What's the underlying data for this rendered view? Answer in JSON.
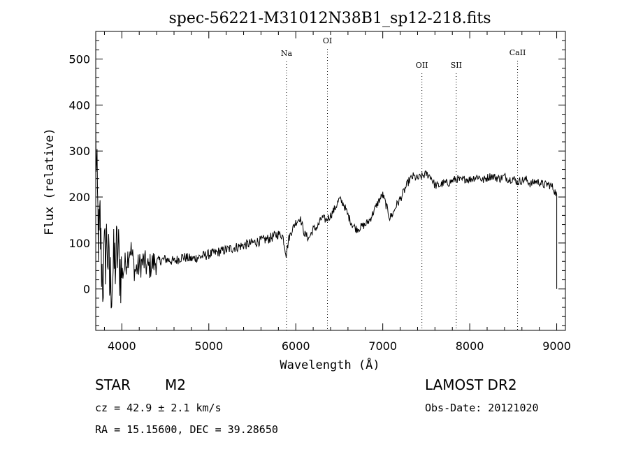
{
  "chart_data": {
    "type": "line",
    "title": "spec-56221-M31012N38B1_sp12-218.fits",
    "xlabel": "Wavelength (Å)",
    "ylabel": "Flux (relative)",
    "xlim": [
      3700,
      9100
    ],
    "ylim": [
      -90,
      560
    ],
    "xticks": [
      4000,
      5000,
      6000,
      7000,
      8000,
      9000
    ],
    "yticks": [
      0,
      100,
      200,
      300,
      400,
      500
    ],
    "series": [
      {
        "x": [
          3700,
          3710,
          3720,
          3730,
          3740,
          3750,
          3760,
          3780,
          3800,
          3830,
          3860,
          3900,
          3950,
          4000,
          4050,
          4100,
          4150,
          4200,
          4250,
          4300,
          4350,
          4400,
          4500,
          4600,
          4700,
          4800,
          4900,
          5000,
          5100,
          5200,
          5300,
          5400,
          5500,
          5600,
          5700,
          5800,
          5850,
          5890,
          5920,
          5960,
          6000,
          6050,
          6100,
          6150,
          6200,
          6250,
          6300,
          6350,
          6400,
          6450,
          6500,
          6550,
          6600,
          6650,
          6700,
          6750,
          6800,
          6850,
          6900,
          6950,
          7000,
          7050,
          7080,
          7120,
          7150,
          7200,
          7250,
          7300,
          7350,
          7400,
          7450,
          7500,
          7550,
          7600,
          7650,
          7700,
          7750,
          7800,
          7850,
          7900,
          7950,
          8000,
          8050,
          8100,
          8150,
          8200,
          8250,
          8300,
          8350,
          8400,
          8450,
          8500,
          8550,
          8600,
          8650,
          8700,
          8750,
          8800,
          8850,
          8900,
          8950,
          9000
        ],
        "y": [
          330,
          250,
          180,
          120,
          90,
          150,
          80,
          20,
          60,
          110,
          0,
          40,
          80,
          30,
          60,
          90,
          40,
          50,
          60,
          45,
          55,
          60,
          65,
          60,
          70,
          65,
          70,
          75,
          80,
          85,
          90,
          95,
          100,
          105,
          110,
          120,
          115,
          75,
          110,
          130,
          145,
          155,
          120,
          110,
          130,
          135,
          155,
          150,
          160,
          175,
          195,
          185,
          160,
          140,
          130,
          135,
          140,
          150,
          170,
          190,
          205,
          175,
          155,
          165,
          180,
          195,
          215,
          235,
          245,
          240,
          245,
          250,
          245,
          225,
          225,
          230,
          230,
          235,
          240,
          235,
          240,
          238,
          242,
          245,
          236,
          242,
          246,
          242,
          240,
          245,
          238,
          240,
          232,
          236,
          238,
          228,
          234,
          232,
          226,
          228,
          222,
          205
        ]
      }
    ],
    "lines": [
      {
        "label": "Na",
        "x": 5893
      },
      {
        "label": "OI",
        "x": 6364
      },
      {
        "label": "OII",
        "x": 7450
      },
      {
        "label": "SII",
        "x": 7845
      },
      {
        "label": "CaII",
        "x": 8550
      }
    ]
  },
  "info": {
    "objtype": "STAR",
    "subclass": "M2",
    "survey": "LAMOST DR2",
    "cz": "cz = 42.9 ± 2.1 km/s",
    "obsdate": "Obs-Date: 20121020",
    "radec": "RA =  15.15600, DEC =  39.28650"
  }
}
